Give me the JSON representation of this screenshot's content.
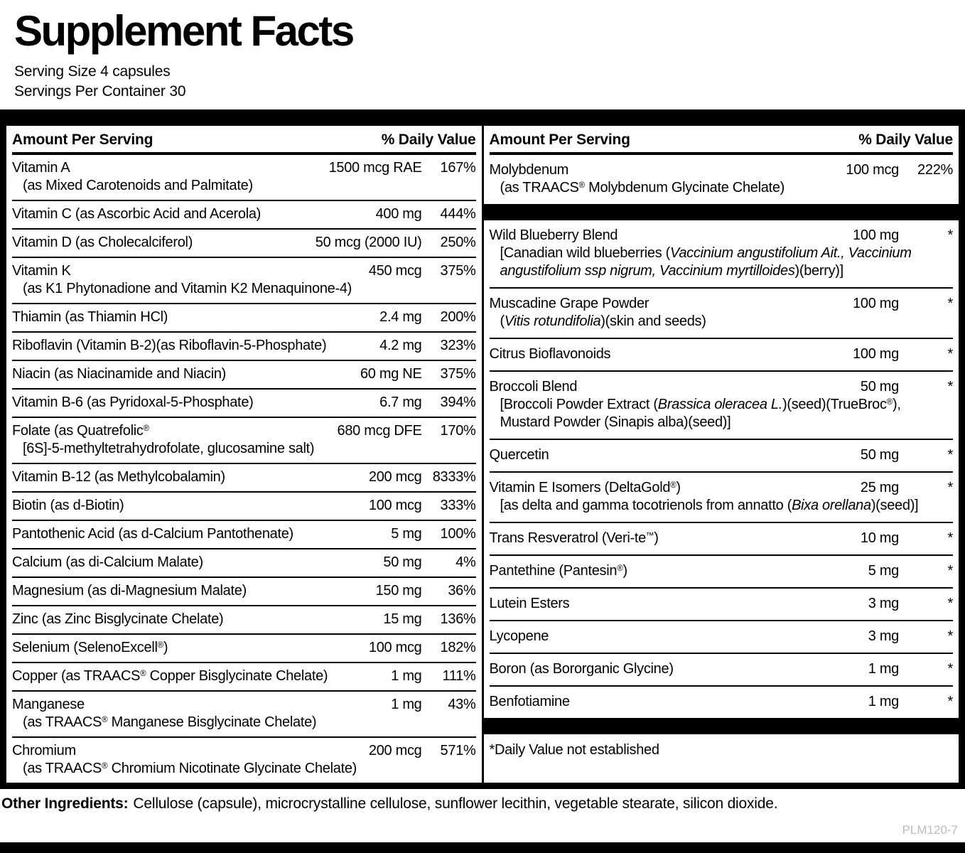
{
  "title": "Supplement Facts",
  "serving_size": "Serving Size 4 capsules",
  "servings_per_container": "Servings Per Container 30",
  "table": {
    "header_amount": "Amount Per Serving",
    "header_dv": "% Daily Value",
    "left_rows": [
      {
        "name": "Vitamin A",
        "sub": [
          {
            "t": "(as Mixed Carotenoids and Palmitate)"
          }
        ],
        "amount": "1500 mcg RAE",
        "dv": "167%"
      },
      {
        "name": "Vitamin C (as Ascorbic Acid and Acerola)",
        "amount": "400 mg",
        "dv": "444%"
      },
      {
        "name": "Vitamin D (as Cholecalciferol)",
        "amount": "50 mcg (2000 IU)",
        "dv": "250%"
      },
      {
        "name": "Vitamin K",
        "sub": [
          {
            "t": "(as K1 Phytonadione and Vitamin K2 Menaquinone-4)"
          }
        ],
        "amount": "450 mcg",
        "dv": "375%"
      },
      {
        "name": "Thiamin (as Thiamin HCl)",
        "amount": "2.4 mg",
        "dv": "200%"
      },
      {
        "name": "Riboflavin (Vitamin B-2)(as Riboflavin-5-Phosphate)",
        "amount": "4.2 mg",
        "dv": "323%"
      },
      {
        "name": "Niacin (as Niacinamide and Niacin)",
        "amount": "60 mg NE",
        "dv": "375%"
      },
      {
        "name": "Vitamin B-6 (as Pyridoxal-5-Phosphate)",
        "amount": "6.7 mg",
        "dv": "394%"
      },
      {
        "name": "Folate (as Quatrefolic®",
        "sub": [
          {
            "t": "[6S]-5-methyltetrahydrofolate, glucosamine salt)"
          }
        ],
        "amount": "680 mcg DFE",
        "dv": "170%"
      },
      {
        "name": "Vitamin B-12 (as Methylcobalamin)",
        "amount": "200 mcg",
        "dv": "8333%"
      },
      {
        "name": "Biotin (as d-Biotin)",
        "amount": "100 mcg",
        "dv": "333%"
      },
      {
        "name": "Pantothenic Acid (as d-Calcium Pantothenate)",
        "amount": "5 mg",
        "dv": "100%"
      },
      {
        "name": "Calcium (as di-Calcium Malate)",
        "amount": "50 mg",
        "dv": "4%"
      },
      {
        "name": "Magnesium (as di-Magnesium Malate)",
        "amount": "150 mg",
        "dv": "36%"
      },
      {
        "name": "Zinc (as Zinc Bisglycinate Chelate)",
        "amount": "15 mg",
        "dv": "136%"
      },
      {
        "name": "Selenium (SelenoExcell®)",
        "amount": "100 mcg",
        "dv": "182%"
      },
      {
        "name": "Copper (as TRAACS® Copper Bisglycinate Chelate)",
        "amount": "1 mg",
        "dv": "111%"
      },
      {
        "name": "Manganese",
        "sub": [
          {
            "t": "(as TRAACS® Manganese Bisglycinate Chelate)"
          }
        ],
        "amount": "1 mg",
        "dv": "43%"
      },
      {
        "name": "Chromium",
        "sub": [
          {
            "t": "(as TRAACS® Chromium Nicotinate Glycinate Chelate)"
          }
        ],
        "amount": "200 mcg",
        "dv": "571%"
      }
    ],
    "right_rows": [
      {
        "name": "Molybdenum",
        "sub": [
          {
            "t": "(as TRAACS® Molybdenum Glycinate Chelate)"
          }
        ],
        "amount": "100 mcg",
        "dv": "222%"
      },
      {
        "type": "bar"
      },
      {
        "name": "Wild Blueberry Blend",
        "sub": [
          {
            "t": "[Canadian wild blueberries ("
          },
          {
            "t": "Vaccinium angustifolium Ait., Vaccinium angustifolium ssp nigrum, Vaccinium myrtilloides",
            "i": true
          },
          {
            "t": ")(berry)]"
          }
        ],
        "amount": "100 mg",
        "dv": "*"
      },
      {
        "name": "Muscadine Grape Powder",
        "sub": [
          {
            "t": "("
          },
          {
            "t": "Vitis rotundifolia",
            "i": true
          },
          {
            "t": ")(skin and seeds)"
          }
        ],
        "amount": "100 mg",
        "dv": "*"
      },
      {
        "name": "Citrus Bioflavonoids",
        "amount": "100 mg",
        "dv": "*"
      },
      {
        "name": "Broccoli Blend",
        "sub": [
          {
            "t": "[Broccoli Powder Extract ("
          },
          {
            "t": "Brassica oleracea L.",
            "i": true
          },
          {
            "t": ")(seed)(TrueBroc®), Mustard Powder (Sinapis alba)(seed)]"
          }
        ],
        "amount": "50 mg",
        "dv": "*"
      },
      {
        "name": "Quercetin",
        "amount": "50 mg",
        "dv": "*"
      },
      {
        "name": "Vitamin E Isomers (DeltaGold®)",
        "sub": [
          {
            "t": "[as delta and gamma tocotrienols from annatto ("
          },
          {
            "t": "Bixa orellana",
            "i": true
          },
          {
            "t": ")(seed)]"
          }
        ],
        "amount": "25 mg",
        "dv": "*"
      },
      {
        "name": "Trans Resveratrol (Veri-te™)",
        "amount": "10 mg",
        "dv": "*"
      },
      {
        "name": "Pantethine (Pantesin®)",
        "amount": "5 mg",
        "dv": "*"
      },
      {
        "name": "Lutein Esters",
        "amount": "3 mg",
        "dv": "*"
      },
      {
        "name": "Lycopene",
        "amount": "3 mg",
        "dv": "*"
      },
      {
        "name": "Boron (as Bororganic Glycine)",
        "amount": "1 mg",
        "dv": "*"
      },
      {
        "name": "Benfotiamine",
        "amount": "1 mg",
        "dv": "*"
      },
      {
        "type": "bar"
      },
      {
        "type": "note",
        "text": "*Daily Value not established"
      }
    ]
  },
  "other_ingredients": {
    "label": "Other Ingredients:",
    "text": "Cellulose (capsule), microcrystalline cellulose, sunflower lecithin, vegetable stearate, silicon dioxide."
  },
  "product_code": "PLM120-7",
  "colors": {
    "ink": "#000000",
    "code_gray": "#b9bcbe"
  }
}
